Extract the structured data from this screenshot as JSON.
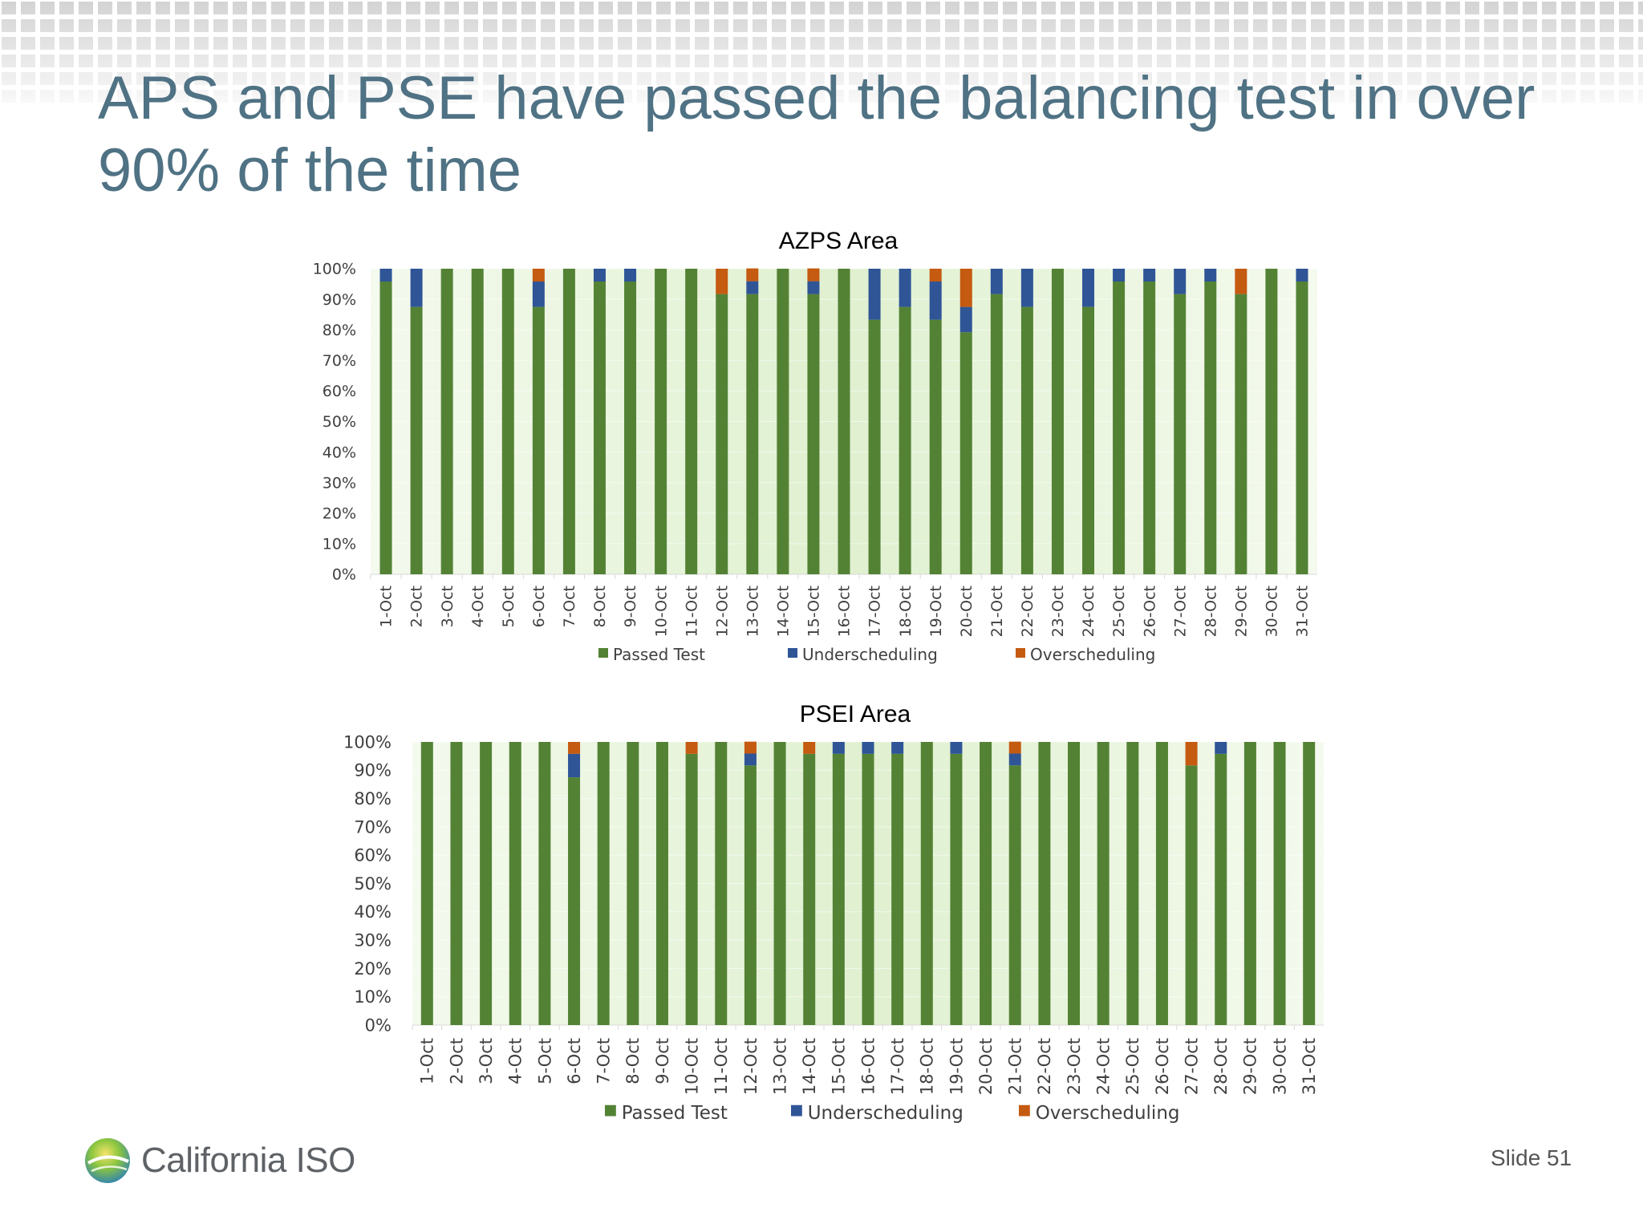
{
  "slide": {
    "title": "APS and PSE have passed the balancing test in over 90% of the time",
    "slide_number": "Slide 51",
    "logo_text": "California ISO"
  },
  "colors": {
    "title": "#4f7284",
    "passed": "#548235",
    "under": "#2f5597",
    "over": "#c55a11",
    "plot_bg": "#dff0cf",
    "header_tile": "#d3d3d3"
  },
  "chart_data": [
    {
      "type": "bar",
      "stacked": true,
      "title": "AZPS Area",
      "categories": [
        "1-Oct",
        "2-Oct",
        "3-Oct",
        "4-Oct",
        "5-Oct",
        "6-Oct",
        "7-Oct",
        "8-Oct",
        "9-Oct",
        "10-Oct",
        "11-Oct",
        "12-Oct",
        "13-Oct",
        "14-Oct",
        "15-Oct",
        "16-Oct",
        "17-Oct",
        "18-Oct",
        "19-Oct",
        "20-Oct",
        "21-Oct",
        "22-Oct",
        "23-Oct",
        "24-Oct",
        "25-Oct",
        "26-Oct",
        "27-Oct",
        "28-Oct",
        "29-Oct",
        "30-Oct",
        "31-Oct"
      ],
      "ylim": [
        0,
        100
      ],
      "yticks": [
        "0%",
        "10%",
        "20%",
        "30%",
        "40%",
        "50%",
        "60%",
        "70%",
        "80%",
        "90%",
        "100%"
      ],
      "legend_position": "bottom",
      "series": [
        {
          "name": "Passed Test",
          "color": "#548235",
          "values": [
            95.8,
            87.5,
            100,
            100,
            100,
            87.5,
            100,
            95.8,
            95.8,
            100,
            100,
            91.7,
            91.7,
            100,
            91.7,
            100,
            83.3,
            87.5,
            83.3,
            79.2,
            91.7,
            87.5,
            100,
            87.5,
            95.8,
            95.8,
            91.7,
            95.8,
            91.7,
            100,
            95.8
          ]
        },
        {
          "name": "Underscheduling",
          "color": "#2f5597",
          "values": [
            4.2,
            12.5,
            0,
            0,
            0,
            8.3,
            0,
            4.2,
            4.2,
            0,
            0,
            0,
            4.2,
            0,
            4.2,
            0,
            16.7,
            12.5,
            12.5,
            8.3,
            8.3,
            12.5,
            0,
            12.5,
            4.2,
            4.2,
            8.3,
            4.2,
            0,
            0,
            4.2
          ]
        },
        {
          "name": "Overscheduling",
          "color": "#c55a11",
          "values": [
            0,
            0,
            0,
            0,
            0,
            4.2,
            0,
            0,
            0,
            0,
            0,
            8.3,
            4.2,
            0,
            4.2,
            0,
            0,
            0,
            4.2,
            12.5,
            0,
            0,
            0,
            0,
            0,
            0,
            0,
            0,
            8.3,
            0,
            0
          ]
        }
      ]
    },
    {
      "type": "bar",
      "stacked": true,
      "title": "PSEI Area",
      "categories": [
        "1-Oct",
        "2-Oct",
        "3-Oct",
        "4-Oct",
        "5-Oct",
        "6-Oct",
        "7-Oct",
        "8-Oct",
        "9-Oct",
        "10-Oct",
        "11-Oct",
        "12-Oct",
        "13-Oct",
        "14-Oct",
        "15-Oct",
        "16-Oct",
        "17-Oct",
        "18-Oct",
        "19-Oct",
        "20-Oct",
        "21-Oct",
        "22-Oct",
        "23-Oct",
        "24-Oct",
        "25-Oct",
        "26-Oct",
        "27-Oct",
        "28-Oct",
        "29-Oct",
        "30-Oct",
        "31-Oct"
      ],
      "ylim": [
        0,
        100
      ],
      "yticks": [
        "0%",
        "10%",
        "20%",
        "30%",
        "40%",
        "50%",
        "60%",
        "70%",
        "80%",
        "90%",
        "100%"
      ],
      "legend_position": "bottom",
      "series": [
        {
          "name": "Passed Test",
          "color": "#548235",
          "values": [
            100,
            100,
            100,
            100,
            100,
            87.5,
            100,
            100,
            100,
            95.8,
            100,
            91.7,
            100,
            95.8,
            95.8,
            95.8,
            95.8,
            100,
            95.8,
            100,
            91.7,
            100,
            100,
            100,
            100,
            100,
            91.7,
            95.8,
            100,
            100,
            100
          ]
        },
        {
          "name": "Underscheduling",
          "color": "#2f5597",
          "values": [
            0,
            0,
            0,
            0,
            0,
            8.3,
            0,
            0,
            0,
            0,
            0,
            4.2,
            0,
            0,
            4.2,
            4.2,
            4.2,
            0,
            4.2,
            0,
            4.2,
            0,
            0,
            0,
            0,
            0,
            0,
            4.2,
            0,
            0,
            0
          ]
        },
        {
          "name": "Overscheduling",
          "color": "#c55a11",
          "values": [
            0,
            0,
            0,
            0,
            0,
            4.2,
            0,
            0,
            0,
            4.2,
            0,
            4.2,
            0,
            4.2,
            0,
            0,
            0,
            0,
            0,
            0,
            4.2,
            0,
            0,
            0,
            0,
            0,
            8.3,
            0,
            0,
            0,
            0
          ]
        }
      ]
    }
  ]
}
